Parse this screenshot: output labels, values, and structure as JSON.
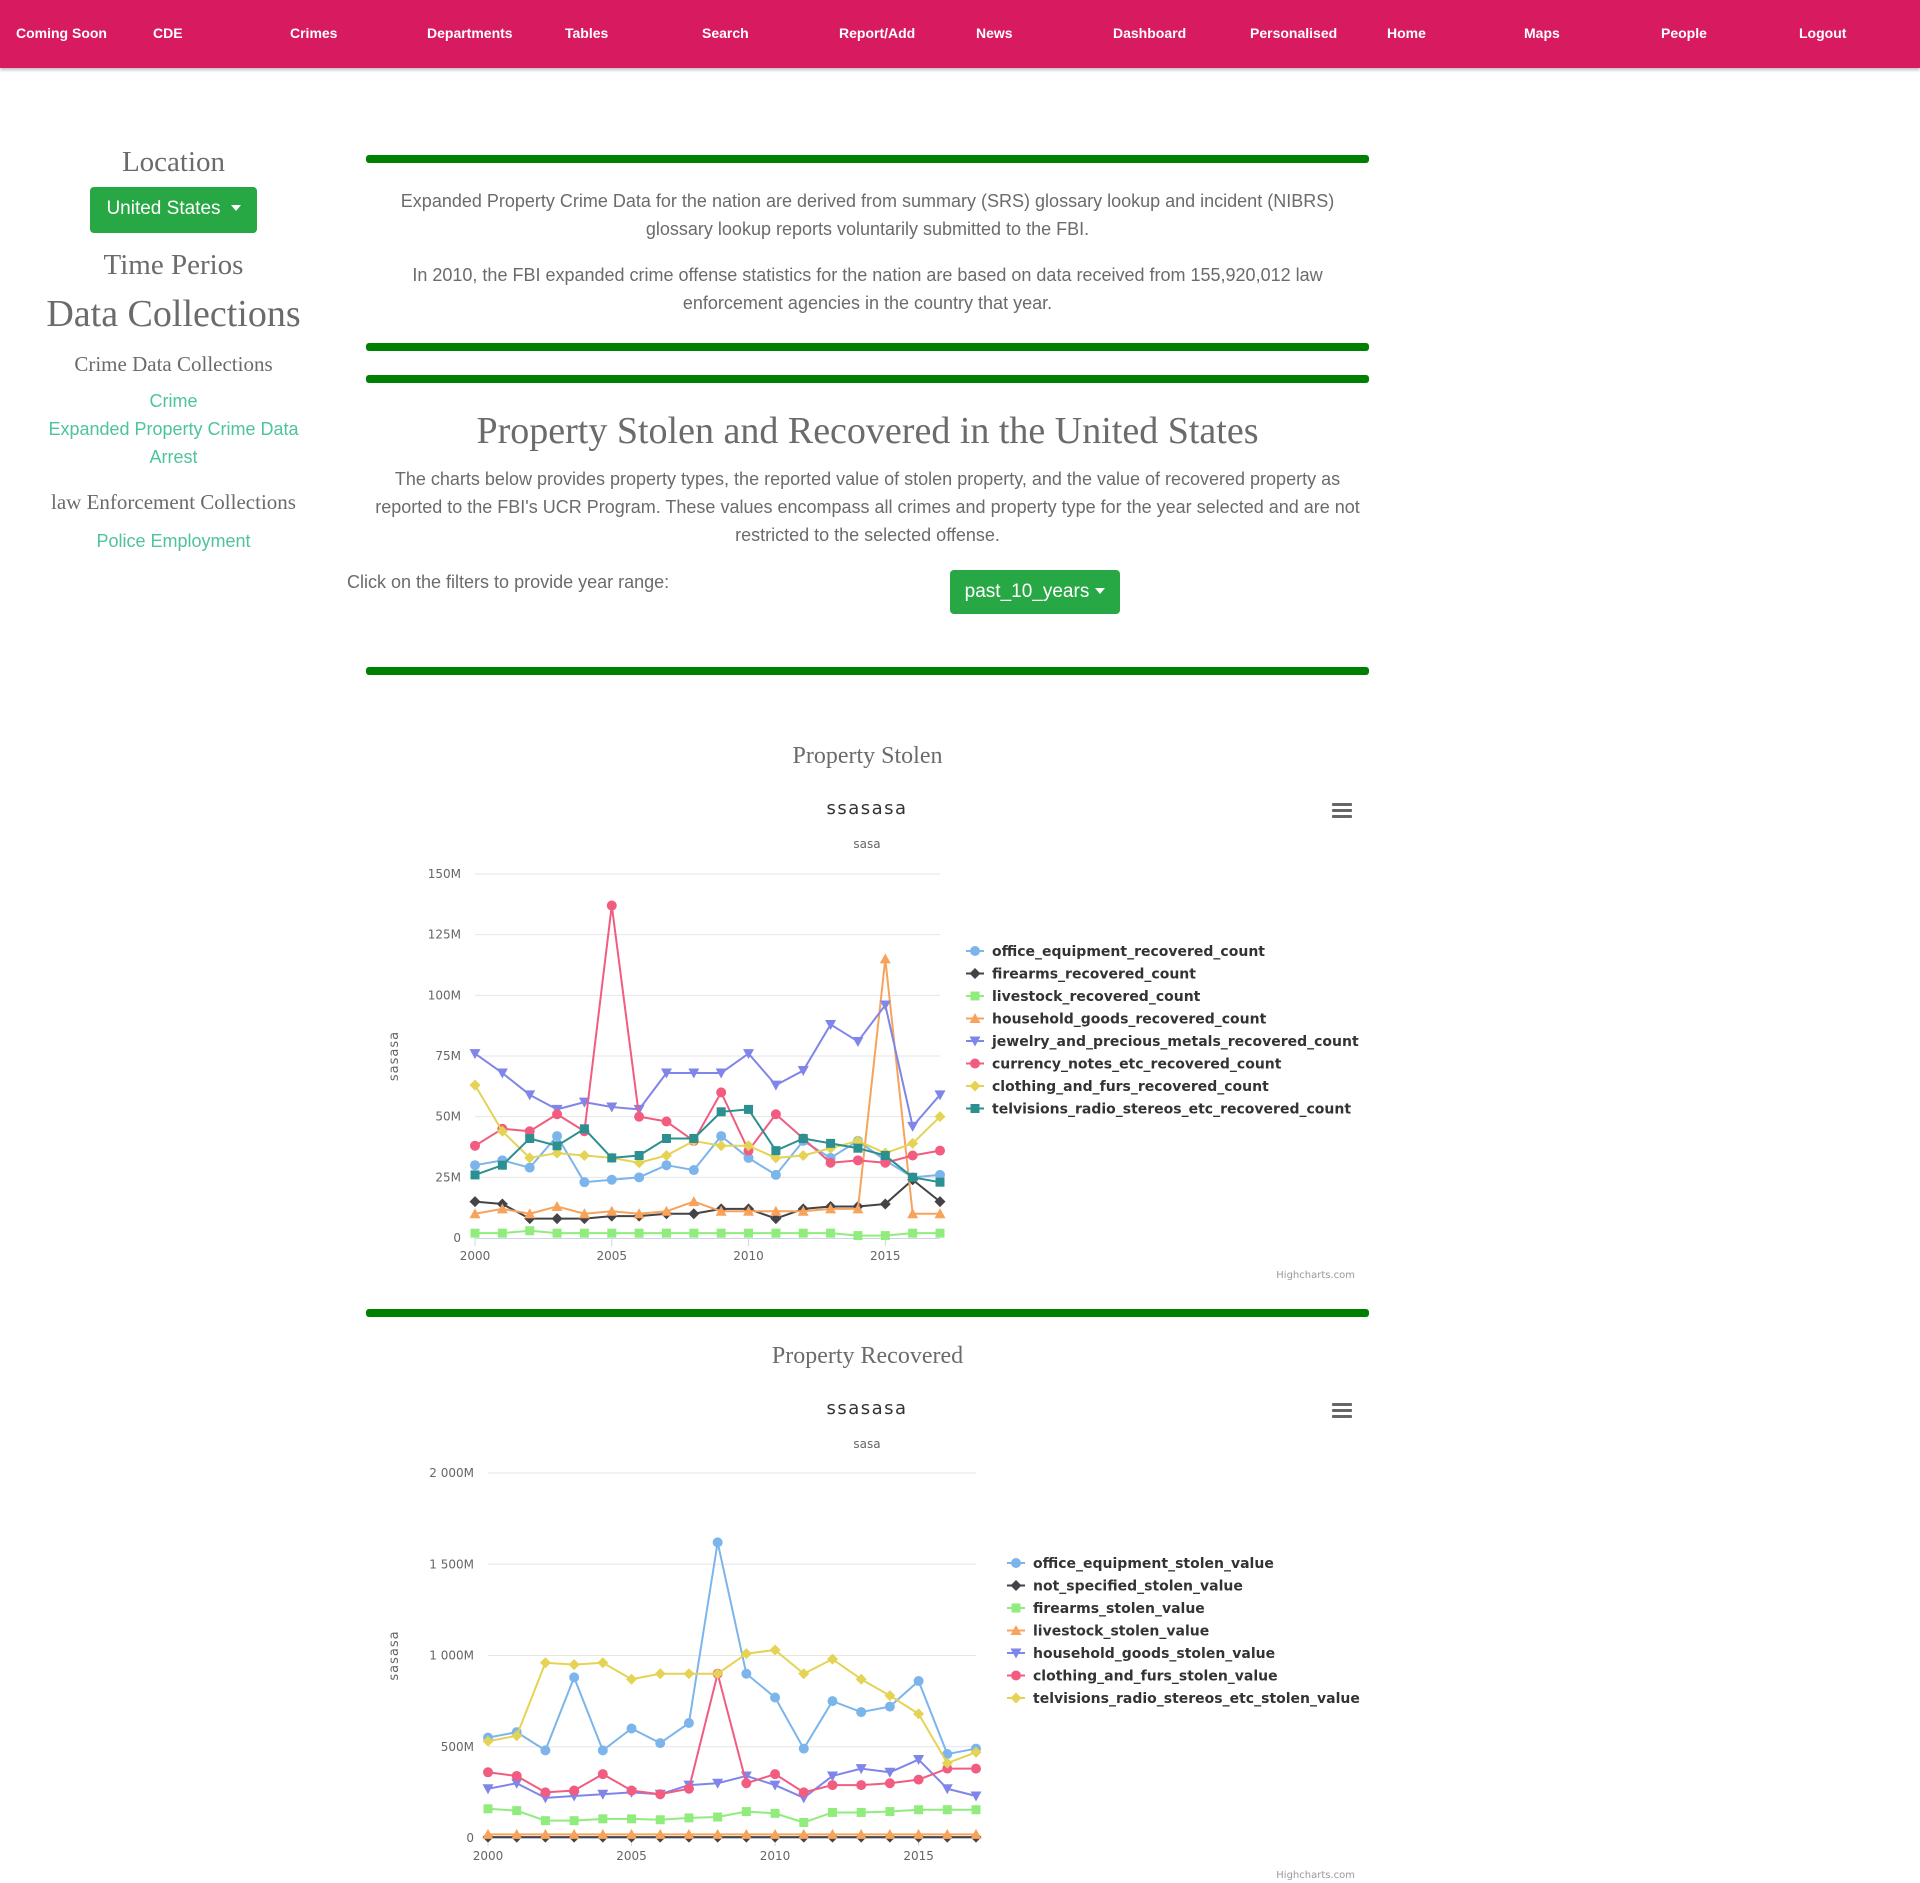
{
  "nav": [
    {
      "id": "coming-soon",
      "label": "Coming Soon"
    },
    {
      "id": "cde",
      "label": "CDE"
    },
    {
      "id": "crimes",
      "label": "Crimes"
    },
    {
      "id": "departments",
      "label": "Departments"
    },
    {
      "id": "tables",
      "label": "Tables"
    },
    {
      "id": "search",
      "label": "Search"
    },
    {
      "id": "report-add",
      "label": "Report/Add"
    },
    {
      "id": "news",
      "label": "News"
    },
    {
      "id": "dashboard",
      "label": "Dashboard"
    },
    {
      "id": "personalised",
      "label": "Personalised"
    },
    {
      "id": "home",
      "label": "Home"
    },
    {
      "id": "maps",
      "label": "Maps"
    },
    {
      "id": "people",
      "label": "People"
    },
    {
      "id": "logout",
      "label": "Logout"
    }
  ],
  "sidebar": {
    "location_label": "Location",
    "location_value": "United States",
    "time_label": "Time Perios",
    "data_collections_label": "Data Collections",
    "crime_collections_label": "Crime Data Collections",
    "crime_links": [
      "Crime",
      "Expanded Property Crime Data",
      "Arrest"
    ],
    "law_collections_label": "law Enforcement Collections",
    "law_links": [
      "Police Employment"
    ]
  },
  "intro": {
    "p1": "Expanded Property Crime Data for the nation are derived from summary (SRS) glossary lookup and incident (NIBRS) glossary lookup reports voluntarily submitted to the FBI.",
    "p2": "In 2010, the FBI expanded crime offense statistics for the nation are based on data received from 155,920,012 law enforcement agencies in the country that year."
  },
  "section": {
    "title": "Property Stolen and Recovered in the United States",
    "description": "The charts below provides property types, the reported value of stolen property, and the value of recovered property as reported to the FBI's UCR Program. These values encompass all crimes and property type for the year selected and are not restricted to the selected offense.",
    "filter_label": "Click on the filters to provide year range:",
    "filter_value": "past_10_years"
  },
  "charts": {
    "stolen_heading": "Property Stolen",
    "recovered_heading": "Property Recovered",
    "credit": "Highcharts.com"
  },
  "chart_data": [
    {
      "type": "line",
      "title": "ssasasa",
      "subtitle": "sasa",
      "ylabel": "sasasa",
      "xlabel": "",
      "x": [
        2000,
        2001,
        2002,
        2003,
        2004,
        2005,
        2006,
        2007,
        2008,
        2009,
        2010,
        2011,
        2012,
        2013,
        2014,
        2015,
        2016,
        2017
      ],
      "xticks": [
        2000,
        2005,
        2010,
        2015
      ],
      "xticks_text": [
        "2000",
        "2005",
        "2010",
        "2015"
      ],
      "ylim": [
        0,
        150
      ],
      "yticks": [
        0,
        25,
        50,
        75,
        100,
        125,
        150
      ],
      "yticks_text": [
        "0",
        "25M",
        "50M",
        "75M",
        "100M",
        "125M",
        "150M"
      ],
      "legend": "right",
      "series": [
        {
          "name": "office_equipment_recovered_count",
          "color": "#7cb5ec",
          "marker": "circle",
          "values": [
            30,
            32,
            29,
            42,
            23,
            24,
            25,
            30,
            28,
            42,
            33,
            26,
            40,
            33,
            40,
            32,
            25,
            26
          ]
        },
        {
          "name": "firearms_recovered_count",
          "color": "#434348",
          "marker": "diamond",
          "values": [
            15,
            14,
            8,
            8,
            8,
            9,
            9,
            10,
            10,
            12,
            12,
            8,
            12,
            13,
            13,
            14,
            24,
            15
          ]
        },
        {
          "name": "livestock_recovered_count",
          "color": "#90ed7d",
          "marker": "square",
          "values": [
            2,
            2,
            3,
            2,
            2,
            2,
            2,
            2,
            2,
            2,
            2,
            2,
            2,
            2,
            1,
            1,
            2,
            2
          ]
        },
        {
          "name": "household_goods_recovered_count",
          "color": "#f7a35c",
          "marker": "triangle",
          "values": [
            10,
            12,
            10,
            13,
            10,
            11,
            10,
            11,
            15,
            11,
            11,
            11,
            11,
            12,
            12,
            115,
            10,
            10
          ]
        },
        {
          "name": "jewelry_and_precious_metals_recovered_count",
          "color": "#8085e9",
          "marker": "triangle-down",
          "values": [
            76,
            68,
            59,
            53,
            56,
            54,
            53,
            68,
            68,
            68,
            76,
            63,
            69,
            88,
            81,
            96,
            46,
            59
          ]
        },
        {
          "name": "currency_notes_etc_recovered_count",
          "color": "#f15c80",
          "marker": "circle",
          "values": [
            38,
            45,
            44,
            51,
            44,
            137,
            50,
            48,
            40,
            60,
            36,
            51,
            41,
            31,
            32,
            31,
            34,
            36
          ]
        },
        {
          "name": "clothing_and_furs_recovered_count",
          "color": "#e4d354",
          "marker": "diamond",
          "values": [
            63,
            44,
            33,
            35,
            34,
            33,
            31,
            34,
            40,
            38,
            38,
            33,
            34,
            37,
            40,
            35,
            39,
            50
          ]
        },
        {
          "name": "telvisions_radio_stereos_etc_recovered_count",
          "color": "#2b908f",
          "marker": "square",
          "values": [
            26,
            30,
            41,
            38,
            45,
            33,
            34,
            41,
            41,
            52,
            53,
            36,
            41,
            39,
            37,
            34,
            25,
            23
          ]
        }
      ]
    },
    {
      "type": "line",
      "title": "ssasasa",
      "subtitle": "sasa",
      "ylabel": "sasasa",
      "xlabel": "",
      "x": [
        2000,
        2001,
        2002,
        2003,
        2004,
        2005,
        2006,
        2007,
        2008,
        2009,
        2010,
        2011,
        2012,
        2013,
        2014,
        2015,
        2016,
        2017
      ],
      "xticks": [
        2000,
        2005,
        2010,
        2015
      ],
      "xticks_text": [
        "2000",
        "2005",
        "2010",
        "2015"
      ],
      "ylim": [
        0,
        2000
      ],
      "yticks": [
        0,
        500,
        1000,
        1500,
        2000
      ],
      "yticks_text": [
        "0",
        "500M",
        "1 000M",
        "1 500M",
        "2 000M"
      ],
      "legend": "right",
      "series": [
        {
          "name": "office_equipment_stolen_value",
          "color": "#7cb5ec",
          "marker": "circle",
          "values": [
            550,
            580,
            480,
            880,
            480,
            600,
            520,
            630,
            1620,
            900,
            770,
            490,
            750,
            690,
            720,
            860,
            460,
            490
          ]
        },
        {
          "name": "not_specified_stolen_value",
          "color": "#434348",
          "marker": "diamond",
          "values": [
            5,
            5,
            5,
            5,
            5,
            5,
            5,
            5,
            5,
            5,
            5,
            5,
            5,
            5,
            5,
            5,
            5,
            5
          ]
        },
        {
          "name": "firearms_stolen_value",
          "color": "#90ed7d",
          "marker": "square",
          "values": [
            160,
            150,
            95,
            95,
            105,
            105,
            100,
            110,
            115,
            145,
            135,
            85,
            140,
            140,
            145,
            155,
            155,
            155
          ]
        },
        {
          "name": "livestock_stolen_value",
          "color": "#f7a35c",
          "marker": "triangle",
          "values": [
            20,
            20,
            20,
            20,
            20,
            20,
            20,
            20,
            20,
            20,
            20,
            20,
            20,
            20,
            20,
            20,
            20,
            20
          ]
        },
        {
          "name": "household_goods_stolen_value",
          "color": "#8085e9",
          "marker": "triangle-down",
          "values": [
            270,
            300,
            220,
            230,
            240,
            250,
            240,
            290,
            300,
            340,
            290,
            220,
            340,
            380,
            360,
            430,
            270,
            230
          ]
        },
        {
          "name": "clothing_and_furs_stolen_value",
          "color": "#f15c80",
          "marker": "circle",
          "values": [
            360,
            340,
            250,
            260,
            350,
            260,
            240,
            270,
            900,
            300,
            350,
            250,
            290,
            290,
            300,
            320,
            380,
            380
          ]
        },
        {
          "name": "telvisions_radio_stereos_etc_stolen_value",
          "color": "#e4d354",
          "marker": "diamond",
          "values": [
            530,
            560,
            960,
            950,
            960,
            870,
            900,
            900,
            900,
            1010,
            1030,
            900,
            980,
            870,
            780,
            680,
            410,
            470
          ]
        }
      ]
    }
  ]
}
